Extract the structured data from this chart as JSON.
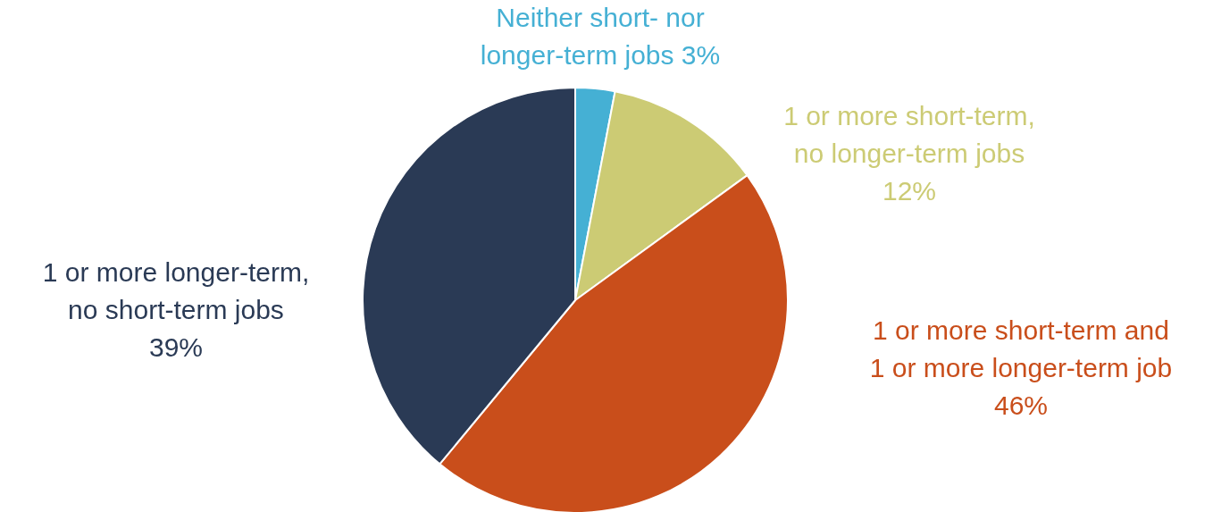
{
  "chart_data": {
    "type": "pie",
    "categories": [
      "Neither short- nor longer-term jobs",
      "1 or more short-term, no longer-term jobs",
      "1 or more short-term and 1 or more longer-term job",
      "1 or more longer-term, no short-term jobs"
    ],
    "values": [
      3,
      12,
      46,
      39
    ],
    "value_labels": [
      "3%",
      "12%",
      "46%",
      "39%"
    ],
    "colors": [
      "#45b0d4",
      "#cccb74",
      "#c94e1b",
      "#2a3a55"
    ]
  }
}
